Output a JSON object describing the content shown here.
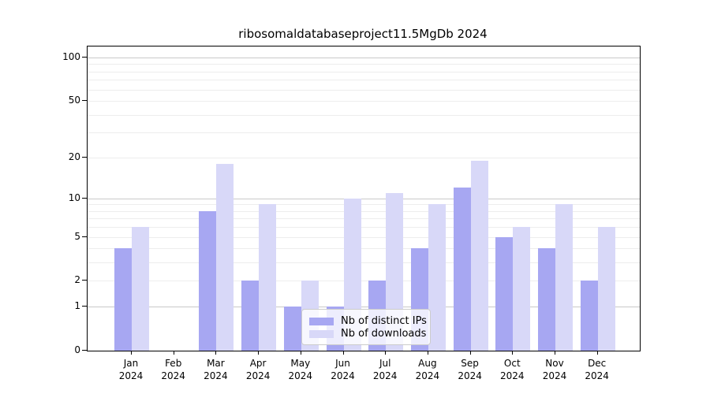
{
  "chart_data": {
    "type": "bar",
    "title": "ribosomaldatabaseproject11.5MgDb 2024",
    "months": [
      "Jan",
      "Feb",
      "Mar",
      "Apr",
      "May",
      "Jun",
      "Jul",
      "Aug",
      "Sep",
      "Oct",
      "Nov",
      "Dec"
    ],
    "year_label": "2024",
    "categories": [
      "Jan 2024",
      "Feb 2024",
      "Mar 2024",
      "Apr 2024",
      "May 2024",
      "Jun 2024",
      "Jul 2024",
      "Aug 2024",
      "Sep 2024",
      "Oct 2024",
      "Nov 2024",
      "Dec 2024"
    ],
    "series": [
      {
        "name": "Nb of distinct IPs",
        "color": "#a7a7f2",
        "values": [
          4,
          0,
          8,
          2,
          1,
          1,
          2,
          4,
          12,
          5,
          4,
          2
        ]
      },
      {
        "name": "Nb of downloads",
        "color": "#d8d8f8",
        "values": [
          6,
          0,
          18,
          9,
          2,
          10,
          11,
          9,
          19,
          6,
          9,
          6
        ]
      }
    ],
    "y_scale": "log1p",
    "ylim": [
      0,
      100
    ],
    "y_ticks": [
      0,
      1,
      2,
      5,
      10,
      20,
      50,
      100
    ],
    "major_grid_values": [
      1,
      10,
      100
    ],
    "minor_grid_values": [
      2,
      3,
      4,
      5,
      6,
      7,
      8,
      9,
      20,
      30,
      40,
      50,
      60,
      70,
      80,
      90
    ],
    "grid": true,
    "legend_position": "lower center",
    "colors": {
      "major_grid": "#c9c9c9",
      "minor_grid": "#ededed",
      "axis": "#000000",
      "background": "#ffffff"
    }
  }
}
